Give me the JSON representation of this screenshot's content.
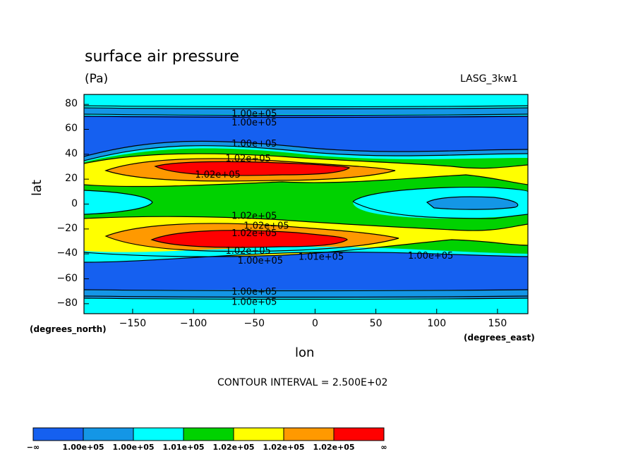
{
  "chart_data": {
    "type": "heatmap",
    "title": "surface air pressure",
    "units": "(Pa)",
    "model_label": "LASG_3kw1",
    "xlabel": "lon",
    "ylabel": "lat",
    "x_unit_note": "(degrees_east)",
    "y_unit_note": "(degrees_north)",
    "xlim": [
      -190,
      175
    ],
    "ylim": [
      -88,
      88
    ],
    "x_ticks": [
      -150,
      -100,
      -50,
      0,
      50,
      100,
      150
    ],
    "x_tick_labels": [
      "−150",
      "−100",
      "−50",
      "0",
      "50",
      "100",
      "150"
    ],
    "y_ticks": [
      80,
      60,
      40,
      20,
      0,
      -20,
      -40,
      -60,
      -80
    ],
    "y_tick_labels": [
      "80",
      "60",
      "40",
      "20",
      "0",
      "−20",
      "−40",
      "−60",
      "−80"
    ],
    "contour_interval": "CONTOUR INTERVAL = 2.500E+02",
    "contour_labels": [
      {
        "text": "1.00e+05",
        "lon": -50,
        "lat": 73
      },
      {
        "text": "1.00e+05",
        "lon": -50,
        "lat": 66
      },
      {
        "text": "1.00e+05",
        "lon": -50,
        "lat": 49
      },
      {
        "text": "1.02e+05",
        "lon": -55,
        "lat": 37
      },
      {
        "text": "1.02e+05",
        "lon": -80,
        "lat": 24
      },
      {
        "text": "1.02e+05",
        "lon": -50,
        "lat": -9
      },
      {
        "text": "1.02e+05",
        "lon": -40,
        "lat": -17
      },
      {
        "text": "1.02e+05",
        "lon": -50,
        "lat": -23
      },
      {
        "text": "1.02e+05",
        "lon": -55,
        "lat": -37
      },
      {
        "text": "1.00e+05",
        "lon": -45,
        "lat": -45
      },
      {
        "text": "1.01e+05",
        "lon": 5,
        "lat": -42
      },
      {
        "text": "1.00e+05",
        "lon": 95,
        "lat": -41
      },
      {
        "text": "1.00e+05",
        "lon": -50,
        "lat": -70
      },
      {
        "text": "1.00e+05",
        "lon": -50,
        "lat": -78
      }
    ],
    "colorbar": {
      "colors": [
        "#1560f0",
        "#1496e6",
        "#00ffff",
        "#00d200",
        "#ffff00",
        "#ff9900",
        "#ff0000"
      ],
      "labels": [
        "−∞",
        "1.00e+05",
        "1.00e+05",
        "1.01e+05",
        "1.02e+05",
        "1.02e+05",
        "1.02e+05",
        "∞"
      ]
    }
  }
}
